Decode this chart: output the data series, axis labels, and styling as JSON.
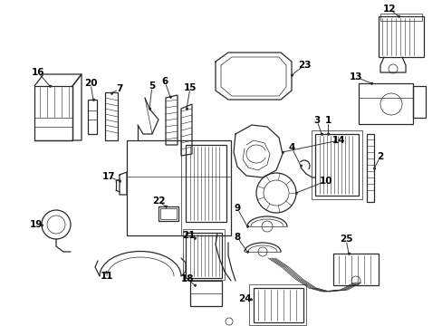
{
  "bg_color": "#ffffff",
  "line_color": "#2a2a2a",
  "text_color": "#000000",
  "fig_width": 4.89,
  "fig_height": 3.6,
  "dpi": 100
}
